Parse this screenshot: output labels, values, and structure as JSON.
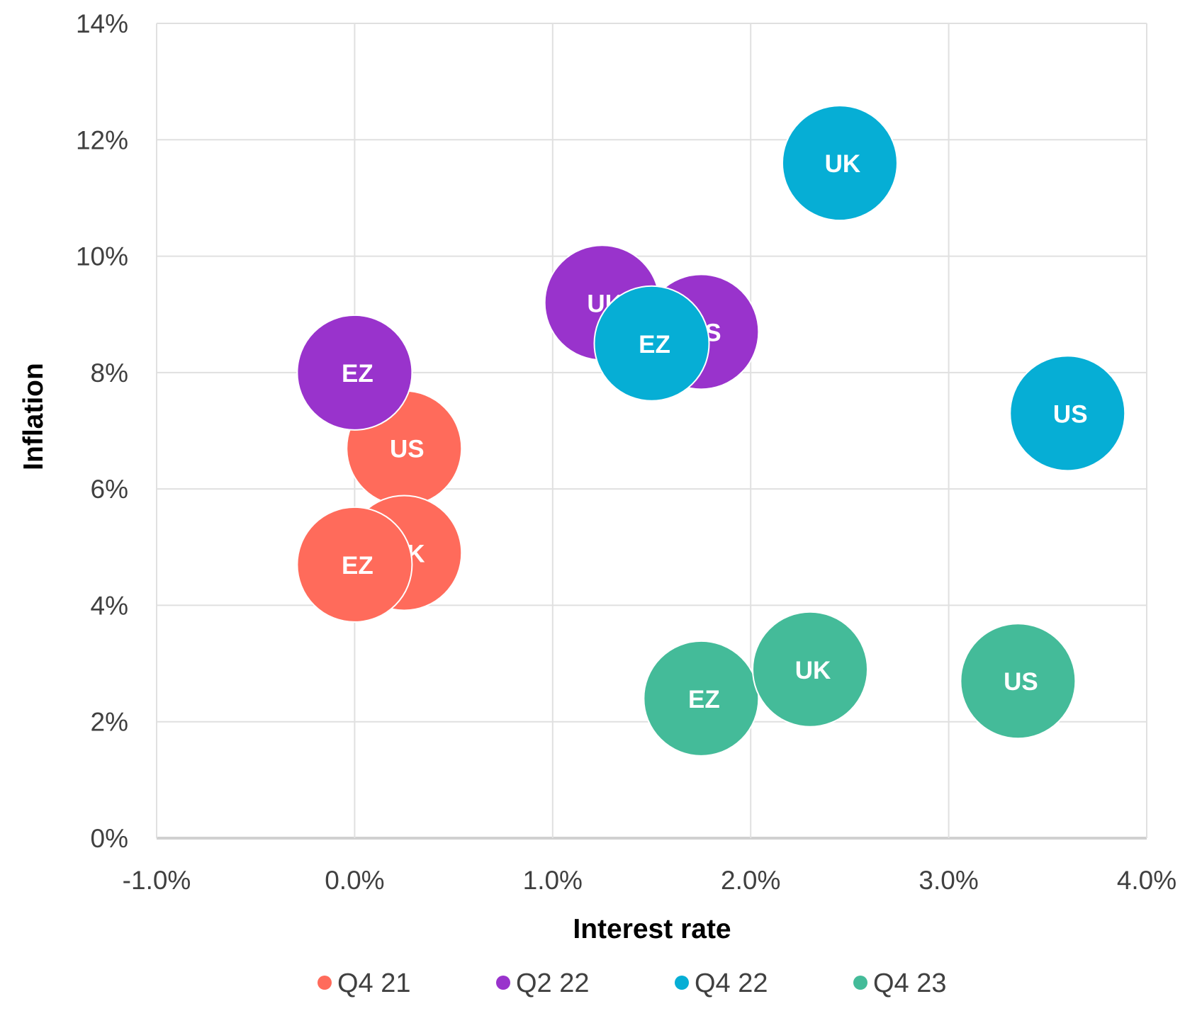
{
  "chart_data": {
    "type": "scatter",
    "xlabel": "Interest rate",
    "ylabel": "Inflation",
    "xlim": [
      -1.0,
      4.0
    ],
    "ylim": [
      0,
      14
    ],
    "xticks": [
      "-1.0%",
      "0.0%",
      "1.0%",
      "2.0%",
      "3.0%",
      "4.0%"
    ],
    "xtick_values": [
      -1,
      0,
      1,
      2,
      3,
      4
    ],
    "yticks": [
      "0%",
      "2%",
      "4%",
      "6%",
      "8%",
      "10%",
      "12%",
      "14%"
    ],
    "ytick_values": [
      0,
      2,
      4,
      6,
      8,
      10,
      12,
      14
    ],
    "grid": true,
    "legend_position": "bottom",
    "series": [
      {
        "name": "Q4 21",
        "color": "#FF6B5B",
        "points": [
          {
            "label": "US",
            "x": 0.25,
            "y": 6.7
          },
          {
            "label": "UK",
            "x": 0.25,
            "y": 4.9
          },
          {
            "label": "EZ",
            "x": 0.0,
            "y": 4.7
          }
        ]
      },
      {
        "name": "Q2 22",
        "color": "#9933CC",
        "points": [
          {
            "label": "EZ",
            "x": 0.0,
            "y": 8.0
          },
          {
            "label": "UK",
            "x": 1.25,
            "y": 9.2
          },
          {
            "label": "US",
            "x": 1.75,
            "y": 8.7
          }
        ]
      },
      {
        "name": "Q4 22",
        "color": "#06AED5",
        "points": [
          {
            "label": "UK",
            "x": 2.45,
            "y": 11.6
          },
          {
            "label": "EZ",
            "x": 1.5,
            "y": 8.5
          },
          {
            "label": "US",
            "x": 3.6,
            "y": 7.3
          }
        ]
      },
      {
        "name": "Q4 23",
        "color": "#44BB99",
        "points": [
          {
            "label": "EZ",
            "x": 1.75,
            "y": 2.4
          },
          {
            "label": "UK",
            "x": 2.3,
            "y": 2.9
          },
          {
            "label": "US",
            "x": 3.35,
            "y": 2.7
          }
        ]
      }
    ]
  }
}
